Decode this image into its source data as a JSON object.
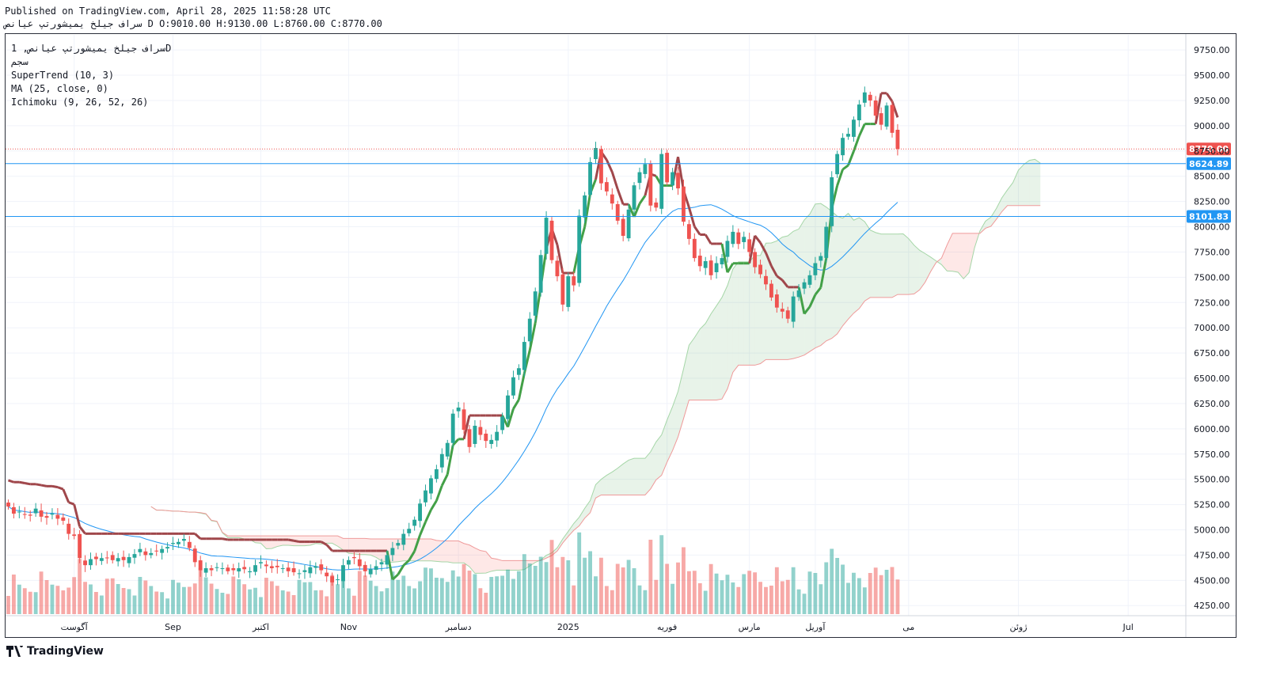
{
  "header": {
    "published": "Published on TradingView.com, April 28, 2025 11:58:28 UTC",
    "ohlc_line": "سراف جیلخ یمیشورتپ عیانص D O:9010.00 H:9130.00 L:8760.00 C:8770.00"
  },
  "legend": {
    "symbol": "سراف جیلخ یمیشورتپ عیانص, 1D",
    "exchange": "سجم",
    "supertrend": "SuperTrend (10, 3)",
    "ma": "MA (25, close, 0)",
    "ichimoku": "Ichimoku (9, 26, 52, 26)"
  },
  "footer": {
    "logo_text": "TradingView"
  },
  "colors": {
    "up": "#26a69a",
    "down": "#ef5350",
    "supertrend_up": "#43a047",
    "supertrend_down": "#a0474b",
    "ma": "#2196f3",
    "hline": "#2196f3",
    "last_price": "#ef5350"
  },
  "chart_data": {
    "type": "candlestick",
    "ylim": [
      4150,
      9900
    ],
    "y_ticks": [
      4250,
      4500,
      4750,
      5000,
      5250,
      5500,
      5750,
      6000,
      6250,
      6500,
      6750,
      7000,
      7250,
      7500,
      7750,
      8000,
      8250,
      8500,
      8750,
      9000,
      9250,
      9500,
      9750
    ],
    "x_labels": [
      {
        "label": "آگوست",
        "index": 12
      },
      {
        "label": "Sep",
        "index": 30
      },
      {
        "label": "اکتبر",
        "index": 46
      },
      {
        "label": "Nov",
        "index": 62
      },
      {
        "label": "دسامبر",
        "index": 82
      },
      {
        "label": "2025",
        "index": 102
      },
      {
        "label": "فوریه",
        "index": 120
      },
      {
        "label": "مارس",
        "index": 135
      },
      {
        "label": "آوریل",
        "index": 147
      },
      {
        "label": "می",
        "index": 164
      },
      {
        "label": "ژوئن",
        "index": 184
      },
      {
        "label": "Jul",
        "index": 204
      }
    ],
    "x_count": 215,
    "last_price": 8770.0,
    "horizontal_lines": [
      8624.89,
      8101.83
    ],
    "candles_close": [
      5230,
      5160,
      5180,
      5150,
      5140,
      5210,
      5130,
      5120,
      5160,
      5110,
      5090,
      4960,
      4940,
      4720,
      4650,
      4710,
      4710,
      4720,
      4720,
      4700,
      4720,
      4700,
      4730,
      4760,
      4810,
      4750,
      4770,
      4790,
      4810,
      4830,
      4870,
      4880,
      4910,
      4820,
      4680,
      4600,
      4620,
      4600,
      4630,
      4620,
      4590,
      4600,
      4620,
      4610,
      4590,
      4650,
      4680,
      4640,
      4620,
      4630,
      4620,
      4590,
      4580,
      4570,
      4600,
      4630,
      4640,
      4600,
      4540,
      4480,
      4510,
      4650,
      4700,
      4720,
      4640,
      4590,
      4610,
      4640,
      4680,
      4750,
      4820,
      4870,
      4960,
      5010,
      5100,
      5260,
      5390,
      5510,
      5600,
      5750,
      5860,
      6150,
      6210,
      5990,
      5820,
      6030,
      5940,
      5880,
      5890,
      5970,
      6120,
      6330,
      6510,
      6600,
      6860,
      7090,
      7360,
      7720,
      8090,
      7670,
      7510,
      7230,
      7510,
      7420,
      8110,
      8310,
      8640,
      8780,
      8430,
      8350,
      8230,
      8060,
      7910,
      8170,
      8410,
      8540,
      8620,
      8210,
      8190,
      8720,
      8440,
      8540,
      8380,
      8050,
      7880,
      7690,
      7610,
      7660,
      7520,
      7640,
      7690,
      7860,
      7950,
      7830,
      7900,
      7750,
      7600,
      7530,
      7430,
      7300,
      7200,
      7160,
      7090,
      7310,
      7370,
      7450,
      7520,
      7640,
      7710,
      8000,
      8490,
      8720,
      8880,
      8920,
      9060,
      9210,
      9330,
      9250,
      9100,
      9010,
      9200,
      8930,
      8770
    ],
    "series": [
      {
        "name": "SuperTrend (10, 3)"
      },
      {
        "name": "MA (25, close, 0)"
      },
      {
        "name": "Ichimoku (9, 26, 52, 26)"
      }
    ]
  }
}
